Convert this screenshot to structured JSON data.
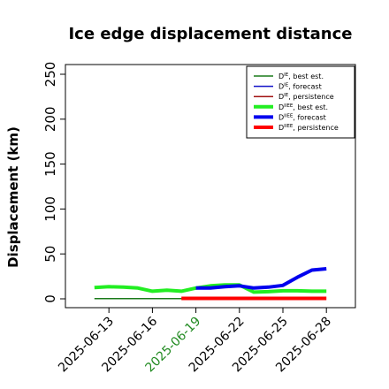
{
  "chart_data": {
    "type": "line",
    "title": "Ice edge displacement distance",
    "ylabel": "Displacement (km)",
    "xlabel": "",
    "ylim": [
      0,
      260
    ],
    "xlim": [
      "2025-06-10",
      "2025-06-30"
    ],
    "yticks": [
      0,
      50,
      100,
      150,
      200,
      250
    ],
    "xticks": [
      "2025-06-13",
      "2025-06-16",
      "2025-06-19",
      "2025-06-22",
      "2025-06-25",
      "2025-06-28"
    ],
    "highlight_tick": "2025-06-19",
    "highlight_color": "#228b22",
    "grid": false,
    "legend_position": "top-right",
    "series": [
      {
        "name": "D^IE, best est.",
        "legend_base": "D",
        "legend_sup": "IE",
        "legend_rest": ", best est.",
        "color": "#1a7a1a",
        "width": 1.5,
        "x": [
          "2025-06-12",
          "2025-06-13",
          "2025-06-14",
          "2025-06-15",
          "2025-06-16",
          "2025-06-17",
          "2025-06-18",
          "2025-06-19"
        ],
        "y": [
          0.3,
          0.3,
          0.3,
          0.3,
          0.3,
          0.3,
          0.3,
          0.3
        ]
      },
      {
        "name": "D^IE, forecast",
        "legend_base": "D",
        "legend_sup": "IE",
        "legend_rest": ", forecast",
        "color": "#1010c8",
        "width": 1.5,
        "x": [],
        "y": []
      },
      {
        "name": "D^IE, persistence",
        "legend_base": "D",
        "legend_sup": "IE",
        "legend_rest": ", persistence",
        "color": "#a01010",
        "width": 1.5,
        "x": [],
        "y": []
      },
      {
        "name": "D^IIEE, best est.",
        "legend_base": "D",
        "legend_sup": "IIEE",
        "legend_rest": ", best est.",
        "color": "#22ee22",
        "width": 4,
        "x": [
          "2025-06-12",
          "2025-06-13",
          "2025-06-14",
          "2025-06-15",
          "2025-06-16",
          "2025-06-17",
          "2025-06-18",
          "2025-06-19",
          "2025-06-20",
          "2025-06-21",
          "2025-06-22",
          "2025-06-23",
          "2025-06-24",
          "2025-06-25",
          "2025-06-26",
          "2025-06-27",
          "2025-06-28"
        ],
        "y": [
          12.5,
          13.5,
          13,
          12,
          8.5,
          9.5,
          8.5,
          12,
          14.5,
          15.5,
          15.5,
          7.5,
          8,
          9,
          9,
          8.5,
          8.5
        ]
      },
      {
        "name": "D^IIEE, forecast",
        "legend_base": "D",
        "legend_sup": "IIEE",
        "legend_rest": ", forecast",
        "color": "#0000ee",
        "width": 4,
        "x": [
          "2025-06-19",
          "2025-06-20",
          "2025-06-21",
          "2025-06-22",
          "2025-06-23",
          "2025-06-24",
          "2025-06-25",
          "2025-06-26",
          "2025-06-27",
          "2025-06-28"
        ],
        "y": [
          12,
          12,
          13.5,
          14.5,
          12,
          13,
          15,
          24,
          32,
          33.5
        ]
      },
      {
        "name": "D^IIEE, persistence",
        "legend_base": "D",
        "legend_sup": "IIEE",
        "legend_rest": ", persistence",
        "color": "#ff0000",
        "width": 4,
        "x": [
          "2025-06-18",
          "2025-06-19",
          "2025-06-20",
          "2025-06-21",
          "2025-06-22",
          "2025-06-23",
          "2025-06-24",
          "2025-06-25",
          "2025-06-26",
          "2025-06-27",
          "2025-06-28"
        ],
        "y": [
          0.5,
          0.5,
          0.5,
          0.5,
          0.5,
          0.5,
          0.5,
          0.5,
          0.5,
          0.5,
          0.5
        ]
      }
    ]
  }
}
